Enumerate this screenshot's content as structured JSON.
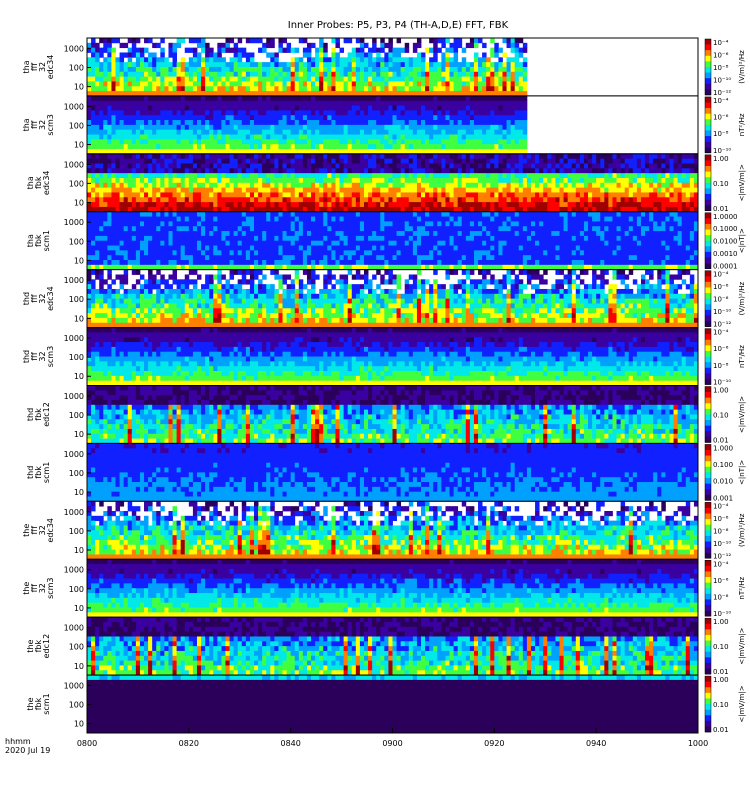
{
  "chart_data": {
    "type": "heatmap",
    "title": "Inner Probes: P5, P3, P4 (TH-A,D,E) FFT, FBK",
    "x_axis": {
      "ticks": [
        "0800",
        "0820",
        "0840",
        "0900",
        "0920",
        "0940",
        "1000"
      ],
      "footer_lines": [
        "hhmm",
        "2020 Jul 19"
      ]
    },
    "colors": {
      "spectrum": [
        "#2b005a",
        "#3a00a0",
        "#1020ff",
        "#00a0ff",
        "#00e8e8",
        "#40ff40",
        "#ffff00",
        "#ff8000",
        "#ff0000",
        "#a00000"
      ]
    },
    "panels": [
      {
        "ylabel": [
          "tha",
          "fff",
          "32",
          "edc34"
        ],
        "yticks": [
          "1000",
          "100",
          "10"
        ],
        "unit": "(V/m)²/Hz",
        "cticks": [
          "10⁻⁴",
          "10⁻⁶",
          "10⁻⁸",
          "10⁻¹⁰",
          "10⁻¹²"
        ],
        "data_end": 0.72,
        "pattern": "eff"
      },
      {
        "ylabel": [
          "tha",
          "fff",
          "32",
          "scm3"
        ],
        "yticks": [
          "1000",
          "100",
          "10"
        ],
        "unit": "nT²/Hz",
        "cticks": [
          "10⁻⁴",
          "10⁻⁶",
          "10⁻⁸",
          "10⁻¹⁰"
        ],
        "data_end": 0.72,
        "pattern": "scm"
      },
      {
        "ylabel": [
          "tha",
          "fbk",
          "edc34"
        ],
        "yticks": [
          "1000",
          "100",
          "10"
        ],
        "unit": "<|mV/m|>",
        "cticks": [
          "1.00",
          "0.10",
          "0.01"
        ],
        "data_end": 1.0,
        "pattern": "fbke_strong"
      },
      {
        "ylabel": [
          "tha",
          "fbk",
          "scm1"
        ],
        "yticks": [
          "1000",
          "100",
          "10"
        ],
        "unit": "<|nT|>",
        "cticks": [
          "1.0000",
          "0.1000",
          "0.0100",
          "0.0010",
          "0.0001"
        ],
        "data_end": 1.0,
        "pattern": "fbkb"
      },
      {
        "ylabel": [
          "thd",
          "fff",
          "32",
          "edc34"
        ],
        "yticks": [
          "1000",
          "100",
          "10"
        ],
        "unit": "(V/m)²/Hz",
        "cticks": [
          "10⁻⁴",
          "10⁻⁶",
          "10⁻⁸",
          "10⁻¹⁰",
          "10⁻¹²"
        ],
        "data_end": 1.0,
        "pattern": "eff"
      },
      {
        "ylabel": [
          "thd",
          "fff",
          "32",
          "scm3"
        ],
        "yticks": [
          "1000",
          "100",
          "10"
        ],
        "unit": "nT²/Hz",
        "cticks": [
          "10⁻⁴",
          "10⁻⁶",
          "10⁻⁸",
          "10⁻¹⁰"
        ],
        "data_end": 1.0,
        "pattern": "scm"
      },
      {
        "ylabel": [
          "thd",
          "fbk",
          "edc12"
        ],
        "yticks": [
          "1000",
          "100",
          "10"
        ],
        "unit": "<|mV/m|>",
        "cticks": [
          "1.00",
          "0.10",
          "0.01"
        ],
        "data_end": 1.0,
        "pattern": "fbke"
      },
      {
        "ylabel": [
          "thd",
          "fbk",
          "scm1"
        ],
        "yticks": [
          "1000",
          "100",
          "10"
        ],
        "unit": "<|nT|>",
        "cticks": [
          "1.000",
          "0.100",
          "0.010",
          "0.001"
        ],
        "data_end": 1.0,
        "pattern": "fbkb2"
      },
      {
        "ylabel": [
          "the",
          "fff",
          "32",
          "edc34"
        ],
        "yticks": [
          "1000",
          "100",
          "10"
        ],
        "unit": "(V/m)²/Hz",
        "cticks": [
          "10⁻⁴",
          "10⁻⁶",
          "10⁻⁸",
          "10⁻¹⁰",
          "10⁻¹²"
        ],
        "data_end": 1.0,
        "pattern": "eff"
      },
      {
        "ylabel": [
          "the",
          "fff",
          "32",
          "scm3"
        ],
        "yticks": [
          "1000",
          "100",
          "10"
        ],
        "unit": "nT²/Hz",
        "cticks": [
          "10⁻⁴",
          "10⁻⁶",
          "10⁻⁸",
          "10⁻¹⁰"
        ],
        "data_end": 1.0,
        "pattern": "scm"
      },
      {
        "ylabel": [
          "the",
          "fbk",
          "edc12"
        ],
        "yticks": [
          "1000",
          "100",
          "10"
        ],
        "unit": "<|mV/m|>",
        "cticks": [
          "1.00",
          "0.10",
          "0.01"
        ],
        "data_end": 1.0,
        "pattern": "fbke"
      },
      {
        "ylabel": [
          "the",
          "fbk",
          "scm1"
        ],
        "yticks": [
          "1000",
          "100",
          "10"
        ],
        "unit": "<|mV/m|>",
        "cticks": [
          "1.00",
          "0.10",
          "0.01"
        ],
        "data_end": 1.0,
        "pattern": "fbkb3"
      }
    ]
  }
}
